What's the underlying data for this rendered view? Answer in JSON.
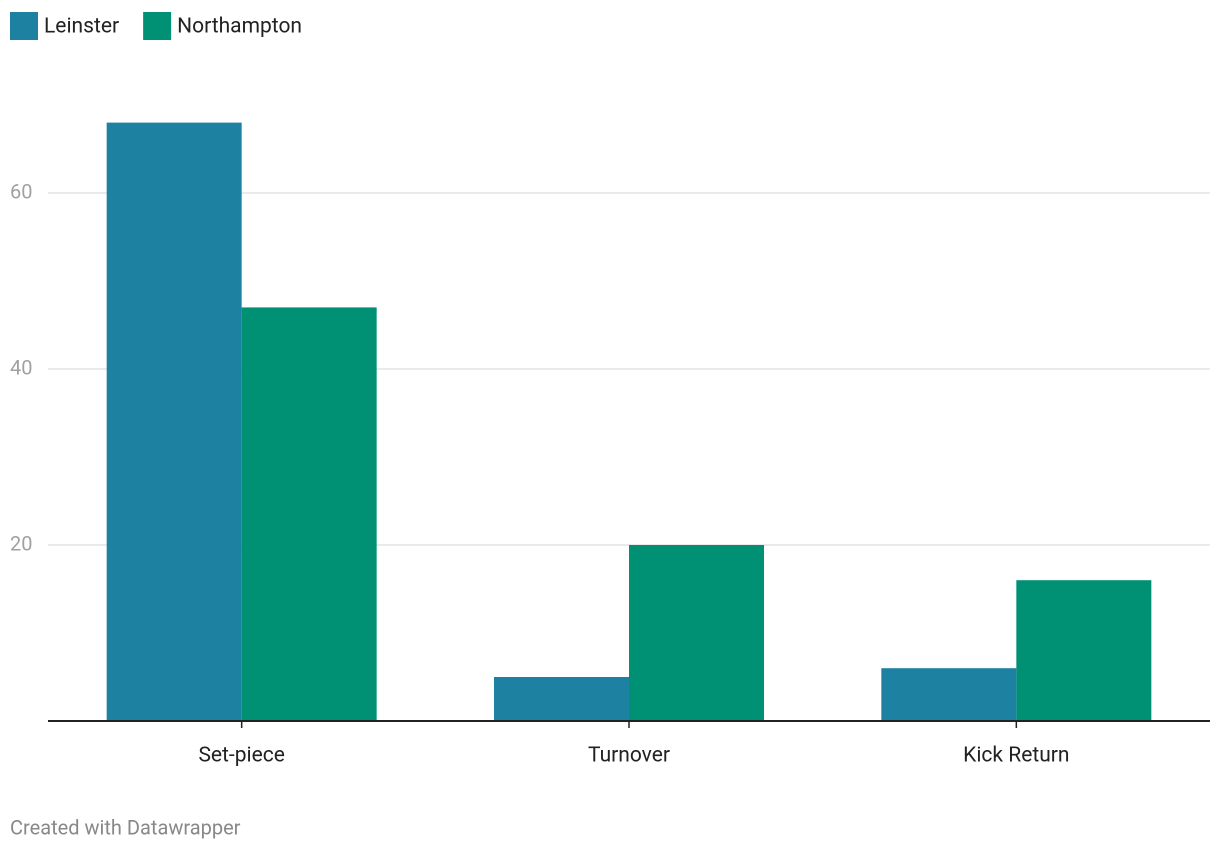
{
  "chart_data": {
    "type": "bar",
    "categories": [
      "Set-piece",
      "Turnover",
      "Kick Return"
    ],
    "series": [
      {
        "name": "Leinster",
        "color": "#1d81a2",
        "values": [
          68,
          5,
          6
        ]
      },
      {
        "name": "Northampton",
        "color": "#009175",
        "values": [
          47,
          20,
          16
        ]
      }
    ],
    "ylim": [
      0,
      70
    ],
    "yticks": [
      20,
      40,
      60
    ],
    "grid": true,
    "legend": "top-left",
    "credit": "Created with Datawrapper"
  }
}
